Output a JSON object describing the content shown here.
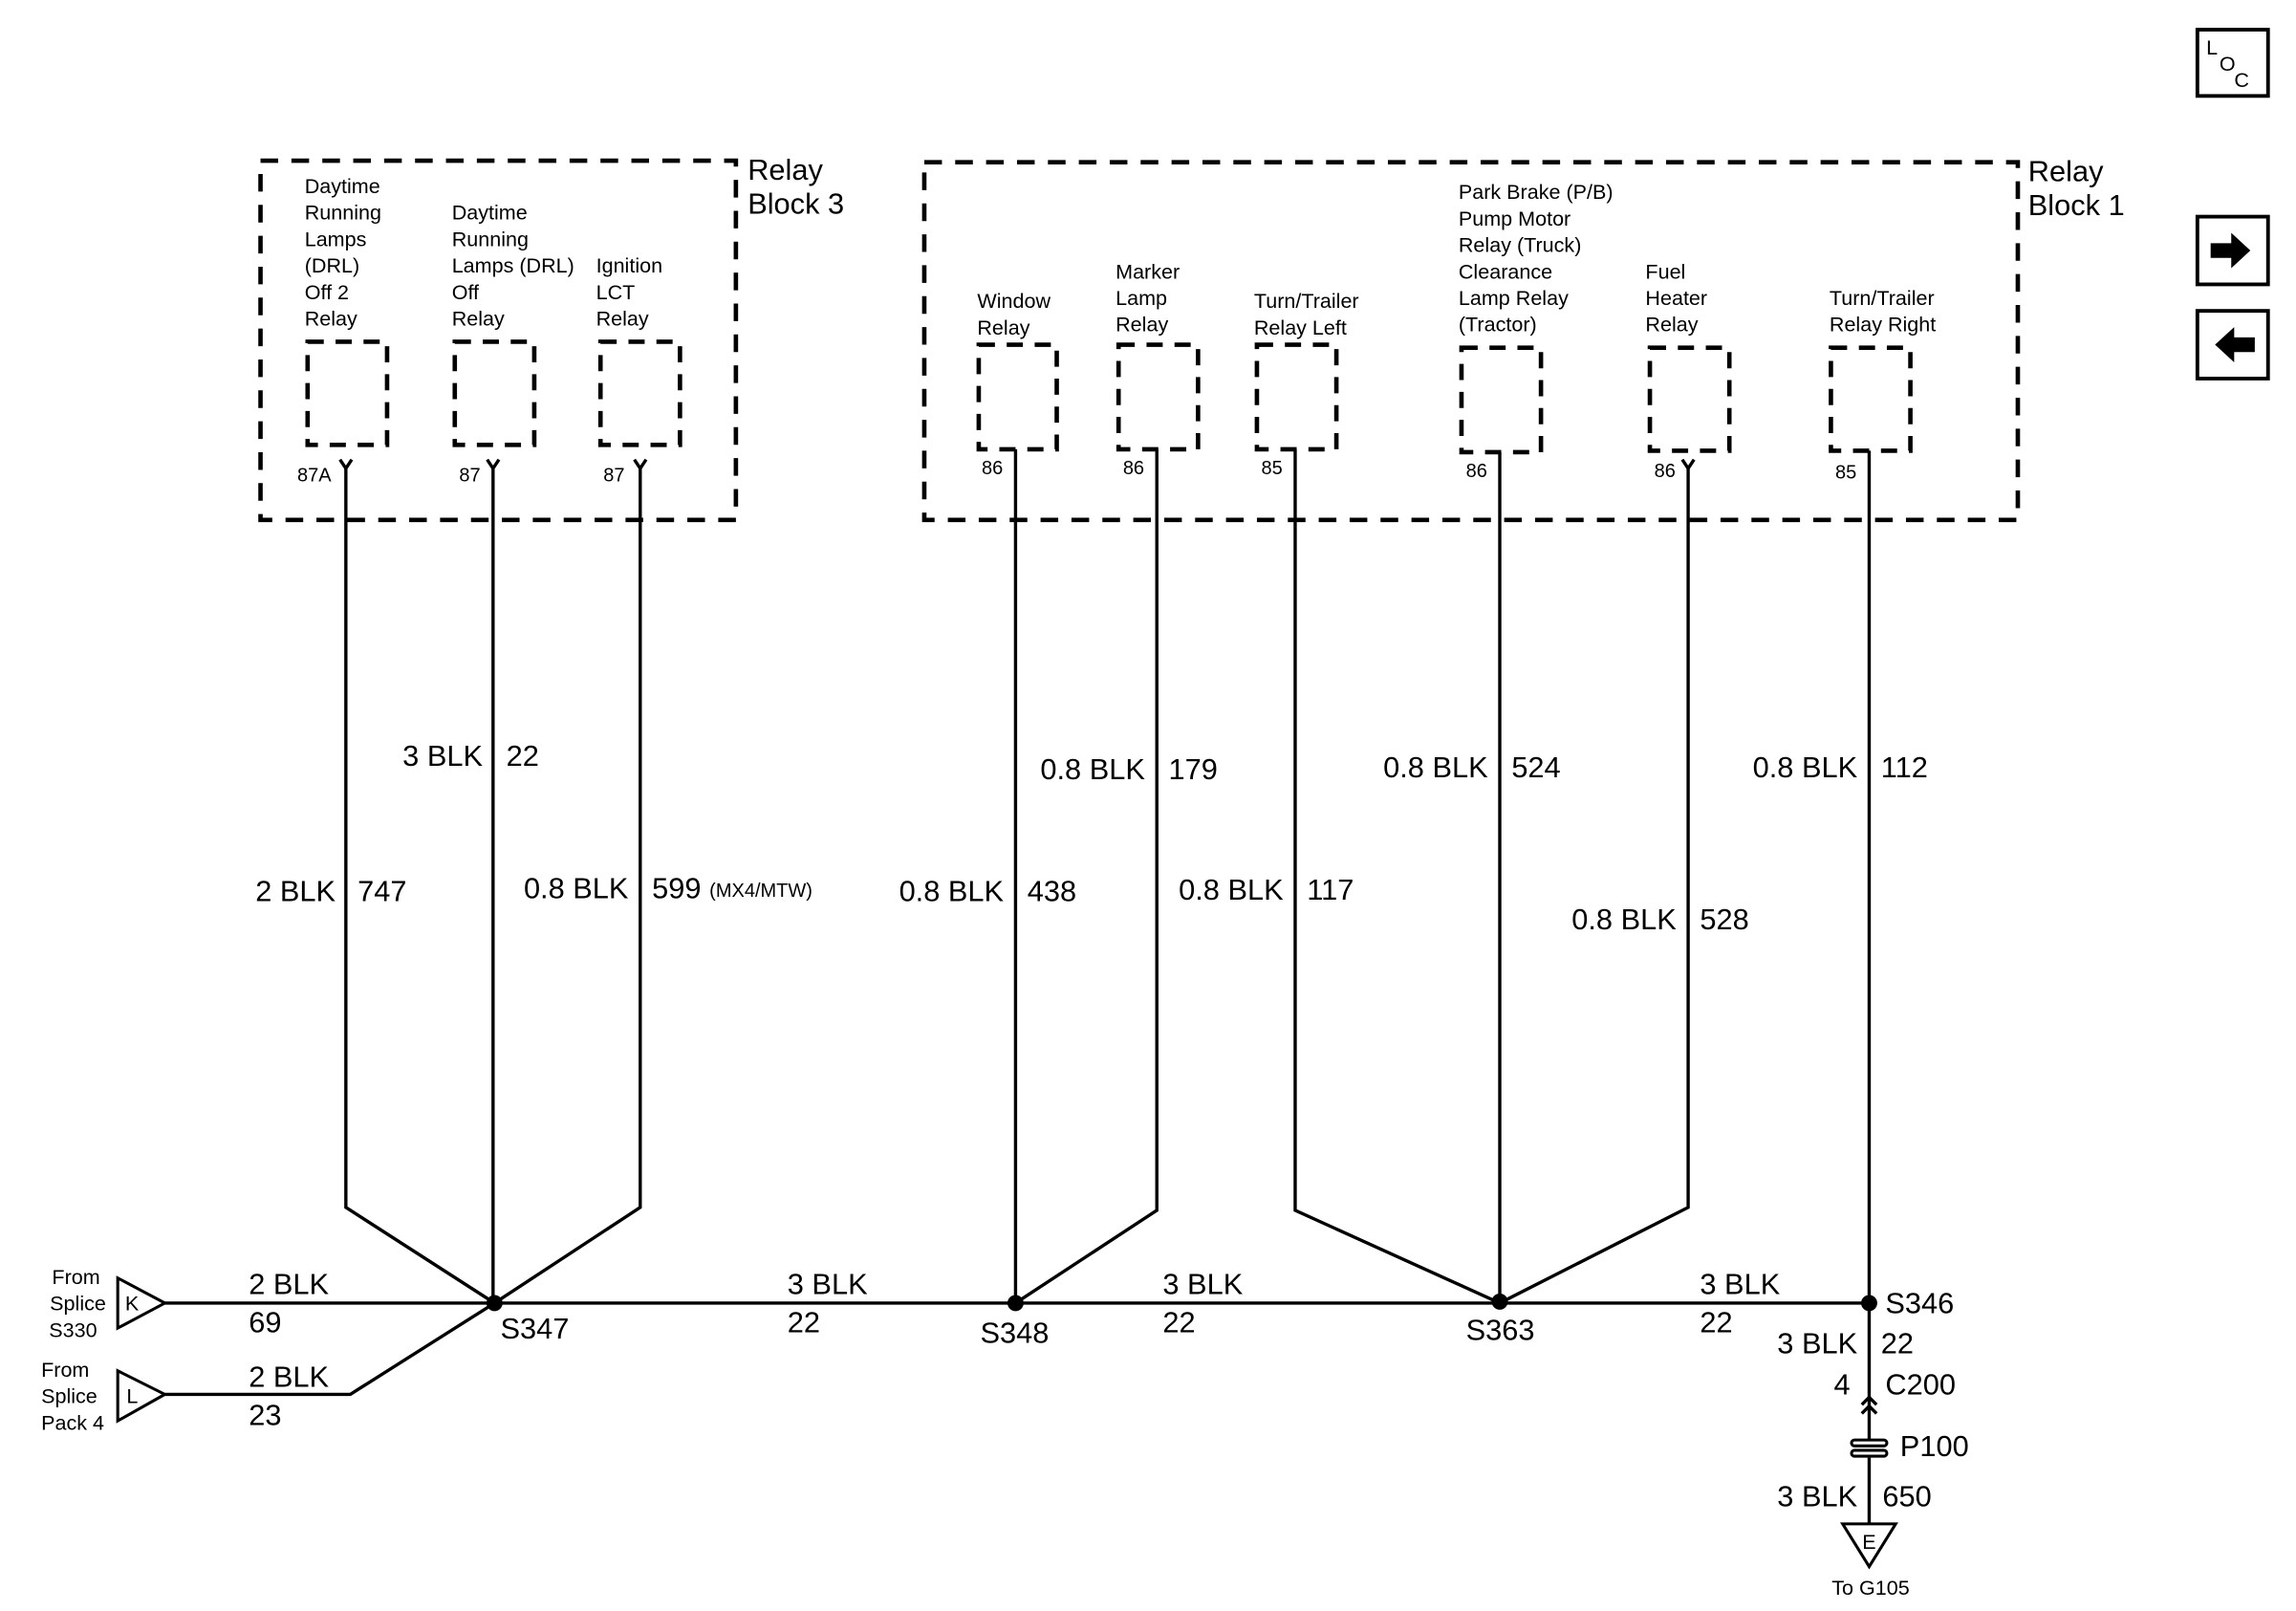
{
  "relay_block_3": {
    "label": [
      "Relay",
      "Block 3"
    ],
    "relays": [
      {
        "name": [
          "Daytime",
          "Running",
          "Lamps",
          "(DRL)",
          "Off 2",
          "Relay"
        ],
        "pin": "87A"
      },
      {
        "name": [
          "Daytime",
          "Running",
          "Lamps (DRL)",
          "Off",
          "Relay"
        ],
        "pin": "87"
      },
      {
        "name": [
          "Ignition",
          "LCT",
          "Relay"
        ],
        "pin": "87"
      }
    ]
  },
  "relay_block_1": {
    "label": [
      "Relay",
      "Block 1"
    ],
    "relays": [
      {
        "name": [
          "Window",
          "Relay"
        ],
        "pin": "86"
      },
      {
        "name": [
          "Marker",
          "Lamp",
          "Relay"
        ],
        "pin": "86"
      },
      {
        "name": [
          "Turn/Trailer",
          "Relay Left"
        ],
        "pin": "85"
      },
      {
        "name": [
          "Park Brake (P/B)",
          "Pump Motor",
          "Relay (Truck)",
          "Clearance",
          "Lamp Relay",
          "(Tractor)"
        ],
        "pin": "86"
      },
      {
        "name": [
          "Fuel",
          "Heater",
          "Relay"
        ],
        "pin": "86"
      },
      {
        "name": [
          "Turn/Trailer",
          "Relay Right"
        ],
        "pin": "85"
      }
    ]
  },
  "wires": {
    "drl_off2": {
      "gauge": "2 BLK",
      "circuit": "747"
    },
    "drl_off": {
      "gauge": "3 BLK",
      "circuit": "22"
    },
    "ignition_lct": {
      "gauge": "0.8 BLK",
      "circuit": "599",
      "option": "(MX4/MTW)"
    },
    "window": {
      "gauge": "0.8 BLK",
      "circuit": "438"
    },
    "marker": {
      "gauge": "0.8 BLK",
      "circuit": "179"
    },
    "turn_left": {
      "gauge": "0.8 BLK",
      "circuit": "117"
    },
    "park_brake": {
      "gauge": "0.8 BLK",
      "circuit": "524"
    },
    "fuel_heater": {
      "gauge": "0.8 BLK",
      "circuit": "528"
    },
    "turn_right": {
      "gauge": "0.8 BLK",
      "circuit": "112"
    },
    "from_k": {
      "gauge": "2 BLK",
      "circuit": "69"
    },
    "from_l": {
      "gauge": "2 BLK",
      "circuit": "23"
    },
    "s347_s348": {
      "gauge": "3 BLK",
      "circuit": "22"
    },
    "s348_s363": {
      "gauge": "3 BLK",
      "circuit": "22"
    },
    "s363_s346": {
      "gauge": "3 BLK",
      "circuit": "22"
    },
    "s346_c200": {
      "gauge": "3 BLK",
      "circuit": "22"
    },
    "p100_ground": {
      "gauge": "3 BLK",
      "circuit": "650"
    }
  },
  "sources": {
    "k": {
      "letter": "K",
      "label": [
        "From",
        "Splice",
        "S330"
      ]
    },
    "l": {
      "letter": "L",
      "label": [
        "From",
        "Splice",
        "Pack 4"
      ]
    }
  },
  "splices": {
    "s347": "S347",
    "s348": "S348",
    "s363": "S363",
    "s346": "S346"
  },
  "connectors": {
    "c200": "C200",
    "c200_pin": "4",
    "p100": "P100"
  },
  "ground": {
    "letter": "E",
    "label": "To G105"
  },
  "nav": {
    "loc": {
      "letters": [
        "L",
        "O",
        "C"
      ],
      "icon": "location-icon"
    },
    "next": {
      "icon": "arrow-right-icon"
    },
    "prev": {
      "icon": "arrow-left-icon"
    }
  }
}
